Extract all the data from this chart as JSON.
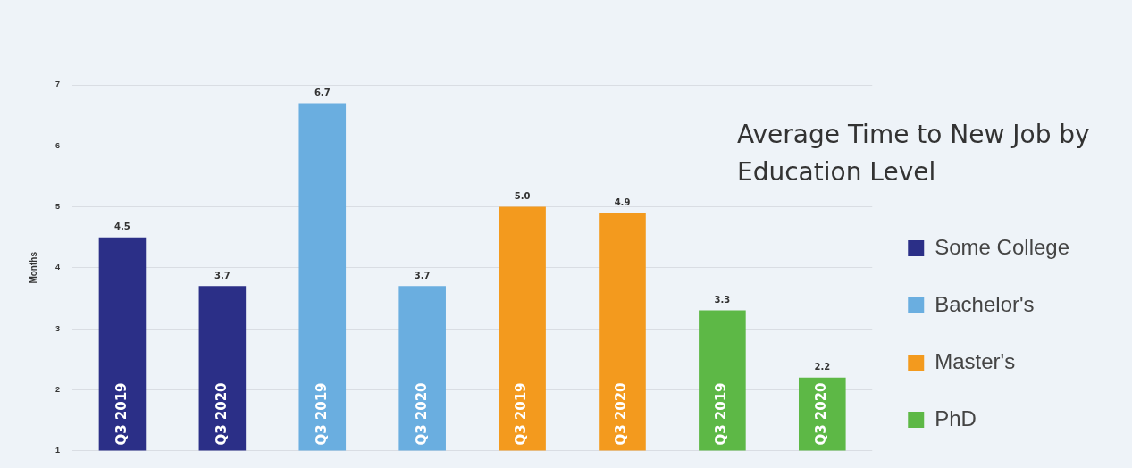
{
  "chart_data": {
    "type": "bar",
    "title": "Average Time to New Job by Education Level",
    "ylabel": "Months",
    "categories": [
      "Q3 2019",
      "Q3 2020",
      "Q3 2019",
      "Q3 2020",
      "Q3 2019",
      "Q3 2020",
      "Q3 2019",
      "Q3 2020"
    ],
    "stacked": true,
    "series": [
      {
        "name": "Some College",
        "color": "#2b2f87",
        "values": [
          4.5,
          3.7,
          null,
          null,
          null,
          null,
          null,
          null
        ],
        "value_labels": [
          "4.5",
          "3.7",
          null,
          null,
          null,
          null,
          null,
          null
        ]
      },
      {
        "name": "Bachelor's",
        "color": "#6aaee0",
        "values": [
          null,
          null,
          6.7,
          3.7,
          null,
          null,
          null,
          null
        ],
        "value_labels": [
          null,
          null,
          "6.7",
          "3.7",
          null,
          null,
          null,
          null
        ]
      },
      {
        "name": "Master's",
        "color": "#f39a1e",
        "values": [
          null,
          null,
          null,
          null,
          5.0,
          4.9,
          null,
          null
        ],
        "value_labels": [
          null,
          null,
          null,
          null,
          "5.0",
          "4.9",
          null,
          null
        ]
      },
      {
        "name": "PhD",
        "color": "#5db846",
        "values": [
          null,
          null,
          null,
          null,
          null,
          null,
          3.3,
          2.2
        ],
        "value_labels": [
          null,
          null,
          null,
          null,
          null,
          null,
          "3.3",
          "2.2"
        ]
      }
    ],
    "ylim": [
      1,
      7
    ],
    "yticks": [
      1,
      2,
      3,
      4,
      5,
      6,
      7
    ],
    "grid": "y",
    "legend": "right"
  }
}
